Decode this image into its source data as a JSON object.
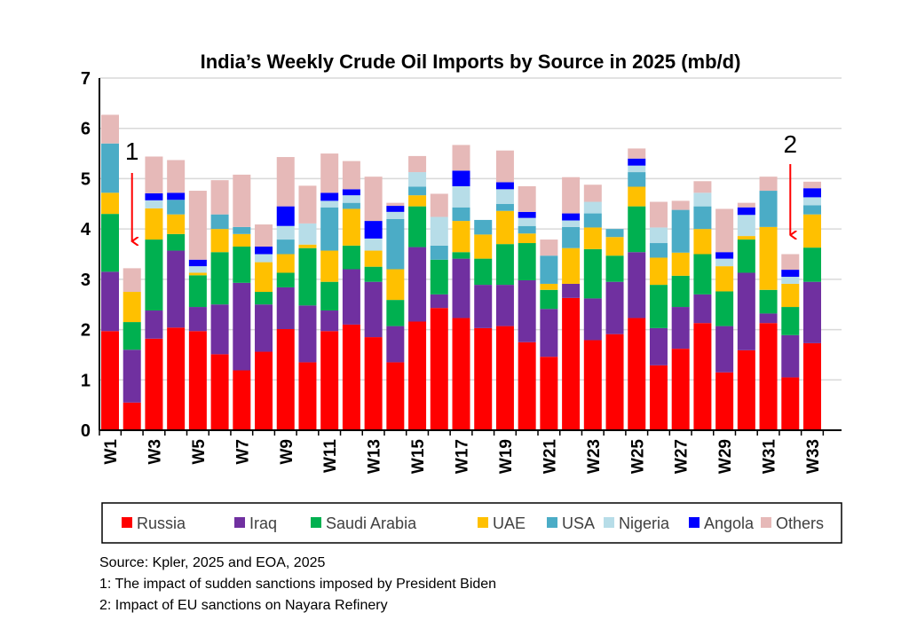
{
  "chart_data": {
    "type": "bar",
    "stacked": true,
    "title": "India’s Weekly Crude Oil Imports by Source in 2025 (mb/d)",
    "xlabel": "",
    "ylabel": "",
    "ylim": [
      0,
      7
    ],
    "yticks": [
      "0",
      "1",
      "2",
      "3",
      "4",
      "5",
      "6",
      "7"
    ],
    "grid": true,
    "legend_position": "bottom",
    "categories": [
      "W1",
      "W2",
      "W3",
      "W4",
      "W5",
      "W6",
      "W7",
      "W8",
      "W9",
      "W10",
      "W11",
      "W12",
      "W13",
      "W14",
      "W15",
      "W16",
      "W17",
      "W18",
      "W19",
      "W20",
      "W21",
      "W22",
      "W23",
      "W24",
      "W25",
      "W26",
      "W27",
      "W28",
      "W29",
      "W30",
      "W31",
      "W32",
      "W33"
    ],
    "xtick_labels": [
      "W1",
      "W3",
      "W5",
      "W7",
      "W9",
      "W11",
      "W13",
      "W15",
      "W17",
      "W19",
      "W21",
      "W23",
      "W25",
      "W27",
      "W29",
      "W31",
      "W33"
    ],
    "series": [
      {
        "name": "Russia",
        "color": "#ff0000",
        "values": [
          1.97,
          0.55,
          1.82,
          2.04,
          1.97,
          1.51,
          1.19,
          1.56,
          2.01,
          1.35,
          1.97,
          2.1,
          1.85,
          1.35,
          2.16,
          2.43,
          2.23,
          2.03,
          2.07,
          1.75,
          1.46,
          2.63,
          1.79,
          1.91,
          2.23,
          1.29,
          1.62,
          2.13,
          1.15,
          1.59,
          2.13,
          1.05,
          1.73
        ]
      },
      {
        "name": "Iraq",
        "color": "#7030a0",
        "values": [
          1.18,
          1.05,
          0.56,
          1.53,
          0.48,
          0.99,
          1.74,
          0.94,
          0.83,
          1.13,
          0.41,
          1.1,
          1.1,
          0.72,
          1.48,
          0.27,
          1.18,
          0.86,
          0.82,
          1.23,
          0.95,
          0.28,
          0.83,
          1.04,
          1.31,
          0.74,
          0.83,
          0.57,
          0.92,
          1.54,
          0.19,
          0.84,
          1.22
        ]
      },
      {
        "name": "Saudi Arabia",
        "color": "#00b050",
        "values": [
          1.15,
          0.55,
          1.41,
          0.33,
          0.63,
          1.04,
          0.72,
          0.25,
          0.29,
          1.14,
          0.57,
          0.47,
          0.3,
          0.52,
          0.81,
          0.69,
          0.13,
          0.52,
          0.81,
          0.74,
          0.38,
          0.0,
          0.98,
          0.52,
          0.91,
          0.86,
          0.62,
          0.8,
          0.69,
          0.66,
          0.47,
          0.56,
          0.68
        ]
      },
      {
        "name": "UAE",
        "color": "#ffc000",
        "values": [
          0.42,
          0.6,
          0.62,
          0.39,
          0.05,
          0.46,
          0.25,
          0.59,
          0.37,
          0.07,
          0.62,
          0.73,
          0.32,
          0.61,
          0.22,
          0.0,
          0.62,
          0.48,
          0.66,
          0.19,
          0.12,
          0.71,
          0.43,
          0.37,
          0.39,
          0.54,
          0.46,
          0.5,
          0.5,
          0.07,
          1.25,
          0.46,
          0.66
        ]
      },
      {
        "name": "USA",
        "color": "#4bacc6",
        "values": [
          0.98,
          0.0,
          0.0,
          0.29,
          0.0,
          0.29,
          0.14,
          0.0,
          0.29,
          0.0,
          0.86,
          0.12,
          0.0,
          1.0,
          0.17,
          0.28,
          0.27,
          0.29,
          0.14,
          0.15,
          0.56,
          0.42,
          0.28,
          0.16,
          0.29,
          0.29,
          0.85,
          0.45,
          0.0,
          0.0,
          0.72,
          0.0,
          0.18
        ]
      },
      {
        "name": "Nigeria",
        "color": "#b7dde8",
        "values": [
          0.0,
          0.0,
          0.16,
          0.0,
          0.13,
          0.0,
          0.0,
          0.16,
          0.27,
          0.42,
          0.13,
          0.15,
          0.24,
          0.14,
          0.29,
          0.57,
          0.42,
          0.0,
          0.29,
          0.16,
          0.0,
          0.13,
          0.23,
          0.0,
          0.13,
          0.31,
          0.0,
          0.27,
          0.15,
          0.42,
          0.0,
          0.14,
          0.16
        ]
      },
      {
        "name": "Angola",
        "color": "#0000ff",
        "values": [
          0.0,
          0.0,
          0.14,
          0.14,
          0.13,
          0.0,
          0.0,
          0.15,
          0.39,
          0.0,
          0.16,
          0.12,
          0.35,
          0.12,
          0.0,
          0.0,
          0.31,
          0.0,
          0.14,
          0.12,
          0.0,
          0.14,
          0.0,
          0.0,
          0.14,
          0.0,
          0.0,
          0.0,
          0.13,
          0.15,
          0.0,
          0.14,
          0.18
        ]
      },
      {
        "name": "Others",
        "color": "#e6b9b8",
        "values": [
          0.57,
          0.47,
          0.73,
          0.65,
          1.37,
          0.68,
          1.04,
          0.44,
          0.98,
          0.75,
          0.78,
          0.56,
          0.88,
          0.06,
          0.32,
          0.46,
          0.51,
          0.0,
          0.63,
          0.51,
          0.32,
          0.72,
          0.34,
          0.0,
          0.2,
          0.51,
          0.18,
          0.23,
          0.86,
          0.09,
          0.28,
          0.31,
          0.13
        ]
      }
    ],
    "annotations": [
      {
        "label": "1",
        "category": "W2",
        "arrow_color": "#ff0000"
      },
      {
        "label": "2",
        "category": "W32",
        "arrow_color": "#ff0000"
      }
    ]
  },
  "notes": {
    "source": "Source: Kpler, 2025 and EOA, 2025",
    "note1": "1: The impact of sudden sanctions imposed by President Biden",
    "note2": "2: Impact of EU sanctions on Nayara Refinery"
  }
}
